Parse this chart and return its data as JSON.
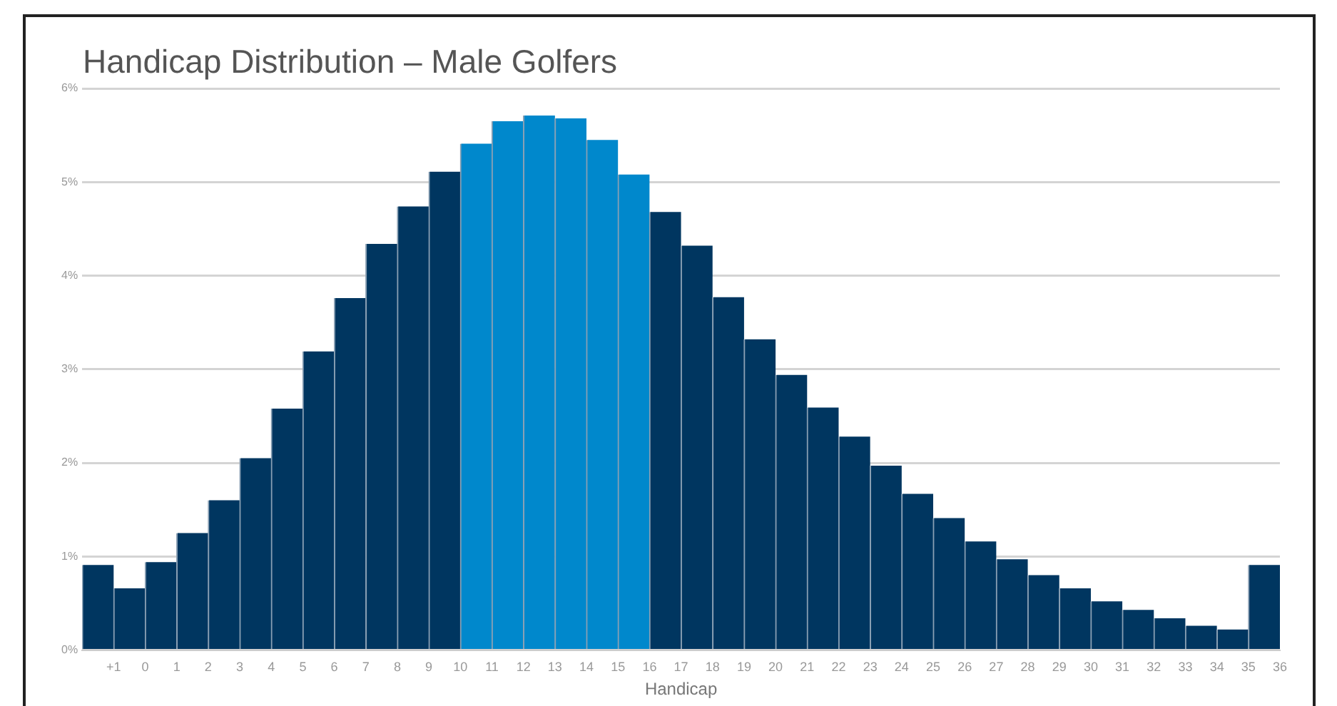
{
  "chart_data": {
    "type": "histogram",
    "title": "Handicap Distribution – Male Golfers",
    "xlabel": "Handicap",
    "bins": [
      -2,
      -1,
      0,
      1,
      2,
      3,
      4,
      5,
      6,
      7,
      8,
      9,
      10,
      11,
      12,
      13,
      14,
      15,
      16,
      17,
      18,
      19,
      20,
      21,
      22,
      23,
      24,
      25,
      26,
      27,
      28,
      29,
      30,
      31,
      32,
      33,
      34,
      35,
      36
    ],
    "values": [
      0.91,
      0.66,
      0.94,
      1.25,
      1.6,
      2.05,
      2.58,
      3.19,
      3.76,
      4.34,
      4.74,
      5.11,
      5.41,
      5.65,
      5.71,
      5.68,
      5.45,
      5.08,
      4.68,
      4.32,
      3.77,
      3.32,
      2.94,
      2.59,
      2.28,
      1.97,
      1.67,
      1.41,
      1.16,
      0.97,
      0.8,
      0.66,
      0.52,
      0.43,
      0.34,
      0.26,
      0.22,
      0.91
    ],
    "colors": [
      "#003660",
      "#003660",
      "#003660",
      "#003660",
      "#003660",
      "#003660",
      "#003660",
      "#003660",
      "#003660",
      "#003660",
      "#003660",
      "#003660",
      "#0088cc",
      "#0088cc",
      "#0088cc",
      "#0088cc",
      "#0088cc",
      "#0088cc",
      "#003660",
      "#003660",
      "#003660",
      "#003660",
      "#003660",
      "#003660",
      "#003660",
      "#003660",
      "#003660",
      "#003660",
      "#003660",
      "#003660",
      "#003660",
      "#003660",
      "#003660",
      "#003660",
      "#003660",
      "#003660",
      "#003660",
      "#003660"
    ],
    "xlim": [
      -2,
      36
    ],
    "xticks": [
      {
        "value": -1,
        "label": "+1"
      },
      0,
      1,
      2,
      3,
      4,
      5,
      6,
      7,
      8,
      9,
      10,
      11,
      12,
      13,
      14,
      15,
      16,
      17,
      18,
      19,
      20,
      21,
      22,
      23,
      24,
      25,
      26,
      27,
      28,
      29,
      30,
      31,
      32,
      33,
      34,
      35,
      36
    ],
    "ylim": [
      0,
      6
    ],
    "yticks": [
      {
        "value": 0,
        "label": "0%"
      },
      {
        "value": 1,
        "label": "1%"
      },
      {
        "value": 2,
        "label": "2%"
      },
      {
        "value": 3,
        "label": "3%"
      },
      {
        "value": 4,
        "label": "4%"
      },
      {
        "value": 5,
        "label": "5%"
      },
      {
        "value": 6,
        "label": "6%"
      }
    ],
    "grid": "y"
  }
}
